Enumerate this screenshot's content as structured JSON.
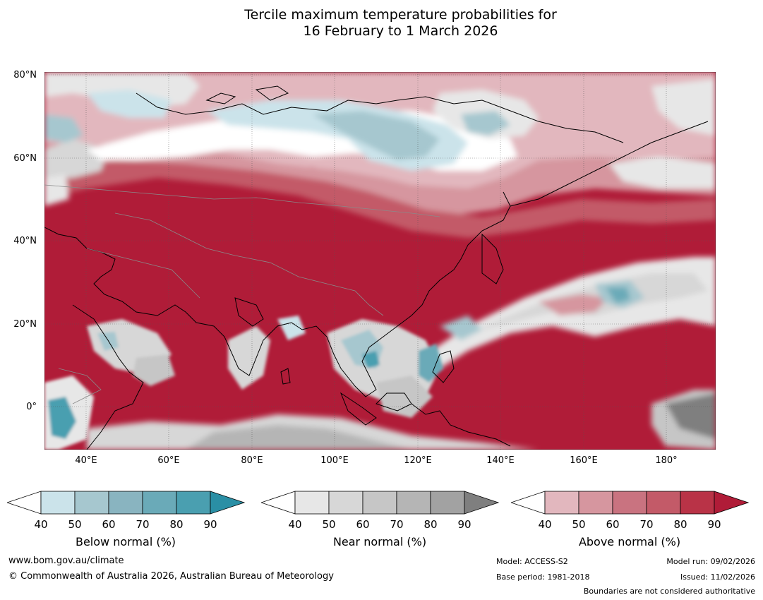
{
  "title_line1": "Tercile maximum temperature probabilities for",
  "title_line2": "16 February to 1 March 2026",
  "lat_labels": [
    "80°N",
    "60°N",
    "40°N",
    "20°N",
    "0°"
  ],
  "lon_labels": [
    "40°E",
    "60°E",
    "80°E",
    "100°E",
    "120°E",
    "140°E",
    "160°E",
    "180°"
  ],
  "colorbars": [
    {
      "name": "Below normal (%)",
      "ticks": [
        "40",
        "50",
        "60",
        "70",
        "80",
        "90"
      ],
      "colors": [
        "#ffffff",
        "#cbe3ea",
        "#a6c7cf",
        "#89b4c0",
        "#6aaab8",
        "#4a9fb0",
        "#2a8fa5"
      ]
    },
    {
      "name": "Near normal (%)",
      "ticks": [
        "40",
        "50",
        "60",
        "70",
        "80",
        "90"
      ],
      "colors": [
        "#ffffff",
        "#e7e7e7",
        "#d7d7d7",
        "#c6c6c6",
        "#b5b5b5",
        "#a2a2a2",
        "#7f7f7f"
      ]
    },
    {
      "name": "Above normal (%)",
      "ticks": [
        "40",
        "50",
        "60",
        "70",
        "80",
        "90"
      ],
      "colors": [
        "#ffffff",
        "#e2b7be",
        "#d6969f",
        "#c97380",
        "#c35a68",
        "#b93347",
        "#b01c38"
      ]
    }
  ],
  "footer": {
    "website": "www.bom.gov.au/climate",
    "copyright": "© Commonwealth of Australia 2026, Australian Bureau of Meteorology",
    "model": "Model: ACCESS-S2",
    "base_period": "Base period: 1981-2018",
    "model_run": "Model run: 09/02/2026",
    "issued": "Issued: 11/02/2026",
    "disclaimer": "Boundaries are not considered authoritative"
  },
  "map": {
    "lon_range": [
      30,
      192
    ],
    "lat_range": [
      -10,
      81
    ],
    "colors": {
      "above_90": "#b01c38",
      "above_80": "#b93347",
      "above_70": "#c35a68",
      "above_60": "#c97380",
      "above_50": "#d6969f",
      "above_40": "#e2b7be",
      "below_60": "#a6c7cf",
      "below_50": "#cbe3ea",
      "below_80": "#4a9fb0",
      "near_50": "#e7e7e7",
      "near_60": "#d7d7d7",
      "near_70": "#c6c6c6",
      "near_90": "#7f7f7f"
    }
  }
}
